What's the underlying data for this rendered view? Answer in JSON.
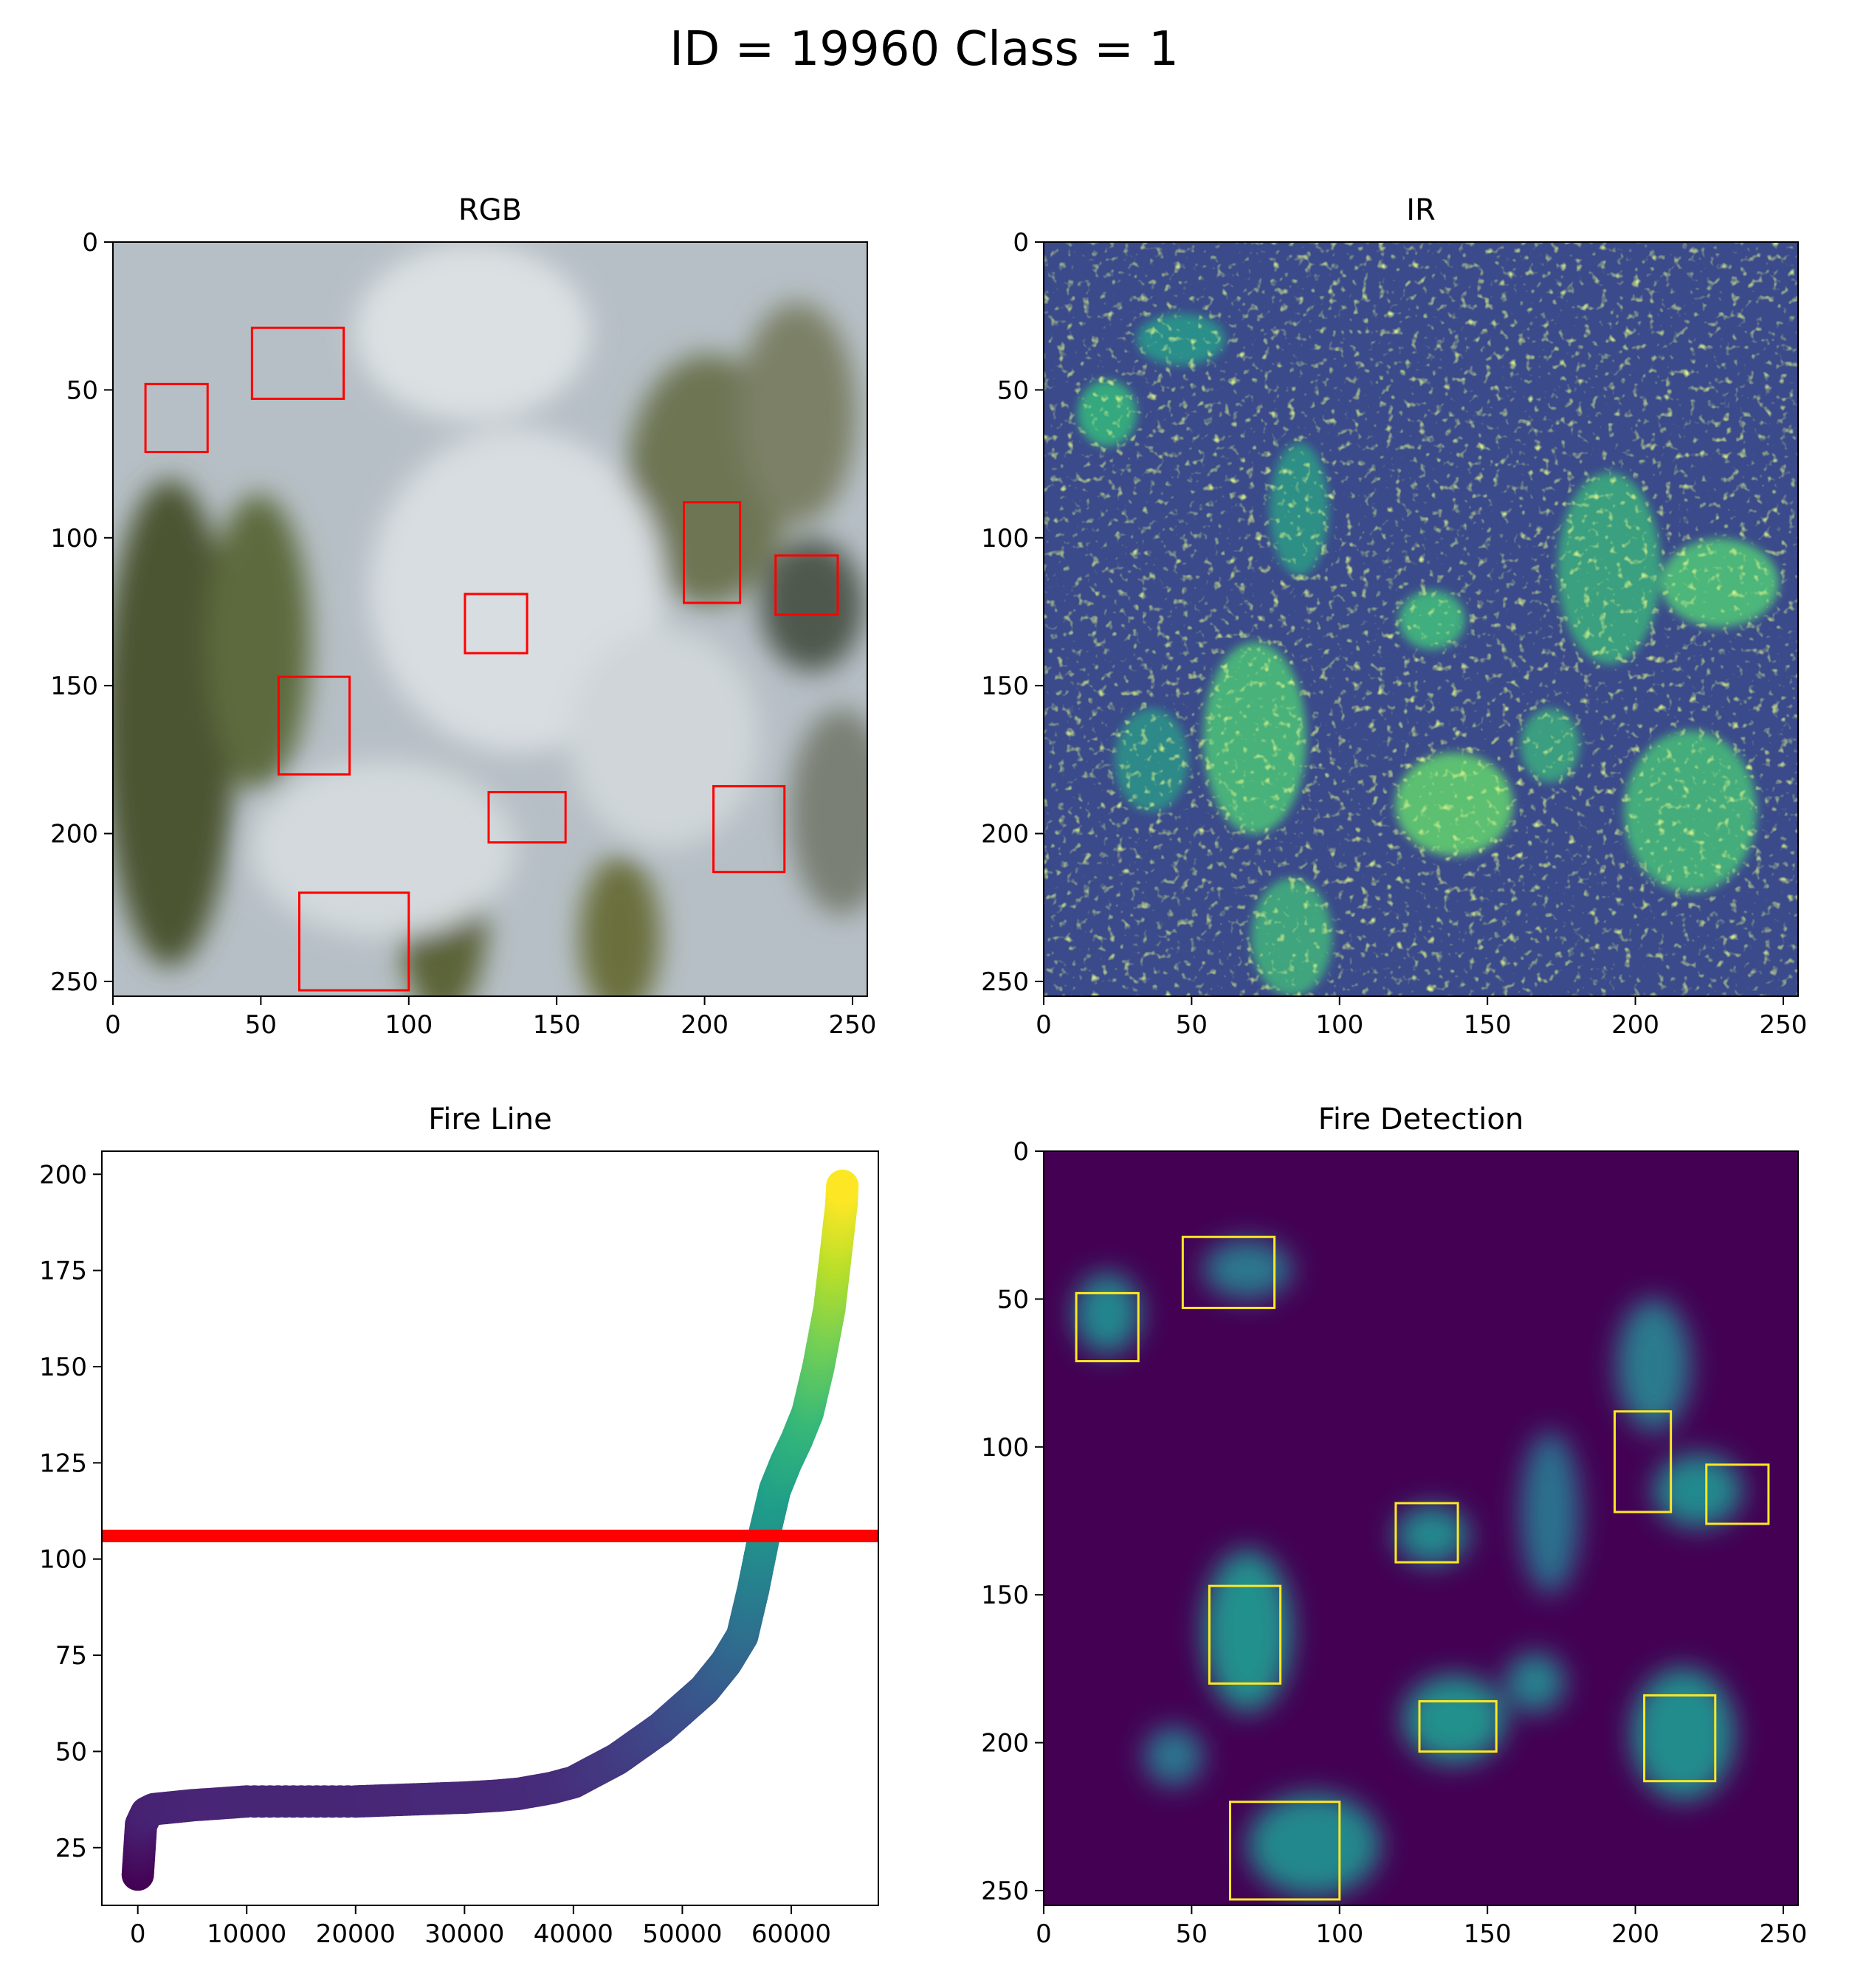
{
  "figure": {
    "title": "ID = 19960 Class = 1"
  },
  "colors": {
    "box_rgb": "#ff0000",
    "box_detection": "#fde725",
    "threshold_line": "#ff0000",
    "viridis": [
      "#440154",
      "#482878",
      "#3e4989",
      "#31688e",
      "#26828e",
      "#1f9e89",
      "#35b779",
      "#6ece58",
      "#b5de2b",
      "#fde725"
    ]
  },
  "chart_data": [
    {
      "type": "image",
      "title": "RGB",
      "xlim": [
        0,
        255
      ],
      "ylim": [
        255,
        0
      ],
      "xticks": [
        0,
        50,
        100,
        150,
        200,
        250
      ],
      "yticks": [
        0,
        50,
        100,
        150,
        200,
        250
      ],
      "boxes_color": "red",
      "boxes": [
        {
          "x0": 11,
          "y0": 48,
          "x1": 32,
          "y1": 71
        },
        {
          "x0": 47,
          "y0": 29,
          "x1": 78,
          "y1": 53
        },
        {
          "x0": 193,
          "y0": 88,
          "x1": 212,
          "y1": 122
        },
        {
          "x0": 224,
          "y0": 106,
          "x1": 245,
          "y1": 126
        },
        {
          "x0": 119,
          "y0": 119,
          "x1": 140,
          "y1": 139
        },
        {
          "x0": 56,
          "y0": 147,
          "x1": 80,
          "y1": 180
        },
        {
          "x0": 127,
          "y0": 186,
          "x1": 153,
          "y1": 203
        },
        {
          "x0": 203,
          "y0": 184,
          "x1": 227,
          "y1": 213
        },
        {
          "x0": 63,
          "y0": 220,
          "x1": 100,
          "y1": 253
        }
      ]
    },
    {
      "type": "heatmap",
      "title": "IR",
      "colormap": "viridis",
      "xlim": [
        0,
        255
      ],
      "ylim": [
        255,
        0
      ],
      "xticks": [
        0,
        50,
        100,
        150,
        200,
        250
      ],
      "yticks": [
        0,
        50,
        100,
        150,
        200,
        250
      ]
    },
    {
      "type": "scatter",
      "title": "Fire Line",
      "colormap": "viridis",
      "xlim": [
        -3300,
        68000
      ],
      "ylim": [
        10,
        206
      ],
      "xticks": [
        0,
        10000,
        20000,
        30000,
        40000,
        50000,
        60000
      ],
      "yticks": [
        25,
        50,
        75,
        100,
        125,
        150,
        175,
        200
      ],
      "threshold_y": 106,
      "x": [
        0,
        300,
        800,
        1500,
        5000,
        10000,
        20000,
        25000,
        30000,
        33000,
        35000,
        38000,
        40000,
        42000,
        44000,
        46000,
        48000,
        50000,
        52000,
        54000,
        55500,
        56500,
        57500,
        58500,
        59500,
        60500,
        61500,
        62500,
        63500,
        64200,
        64600,
        64700
      ],
      "y": [
        18,
        31,
        34,
        35,
        36,
        37,
        37,
        37.5,
        38,
        38.5,
        39,
        40.5,
        42,
        45,
        48,
        52,
        56,
        61,
        66,
        73,
        80,
        92,
        106,
        118,
        125,
        131,
        138,
        150,
        165,
        182,
        192,
        197
      ]
    },
    {
      "type": "heatmap",
      "title": "Fire Detection",
      "colormap": "viridis",
      "xlim": [
        0,
        255
      ],
      "ylim": [
        255,
        0
      ],
      "xticks": [
        0,
        50,
        100,
        150,
        200,
        250
      ],
      "yticks": [
        0,
        50,
        100,
        150,
        200,
        250
      ],
      "boxes_color": "yellow",
      "boxes": [
        {
          "x0": 11,
          "y0": 48,
          "x1": 32,
          "y1": 71
        },
        {
          "x0": 47,
          "y0": 29,
          "x1": 78,
          "y1": 53
        },
        {
          "x0": 193,
          "y0": 88,
          "x1": 212,
          "y1": 122
        },
        {
          "x0": 224,
          "y0": 106,
          "x1": 245,
          "y1": 126
        },
        {
          "x0": 119,
          "y0": 119,
          "x1": 140,
          "y1": 139
        },
        {
          "x0": 56,
          "y0": 147,
          "x1": 80,
          "y1": 180
        },
        {
          "x0": 127,
          "y0": 186,
          "x1": 153,
          "y1": 203
        },
        {
          "x0": 203,
          "y0": 184,
          "x1": 227,
          "y1": 213
        },
        {
          "x0": 63,
          "y0": 220,
          "x1": 100,
          "y1": 253
        }
      ]
    }
  ]
}
